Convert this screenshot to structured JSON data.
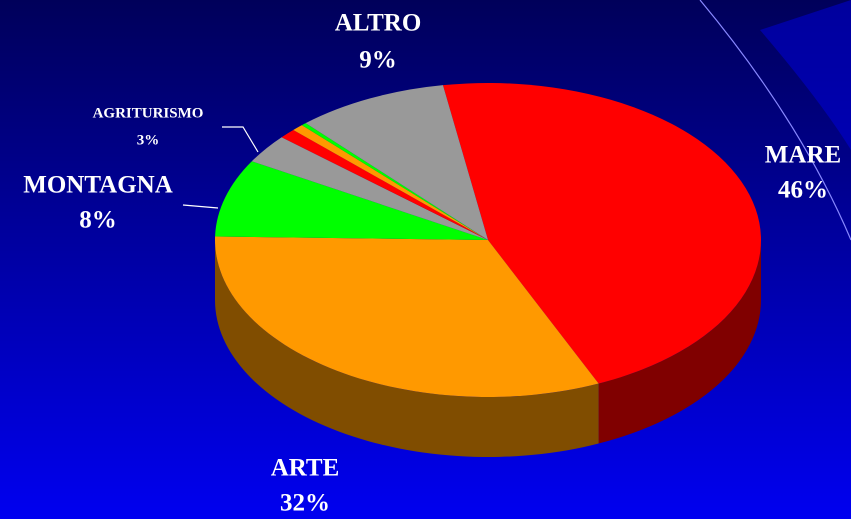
{
  "chart_data": {
    "type": "pie",
    "three_d": true,
    "categories": [
      "MARE",
      "ARTE",
      "MONTAGNA",
      "AGRITURISMO",
      null,
      null,
      null,
      "ALTRO"
    ],
    "values": [
      46,
      32,
      8,
      3,
      1,
      0.7,
      0.3,
      9
    ],
    "value_labels": [
      "46%",
      "32%",
      "8%",
      "3%",
      null,
      null,
      null,
      "9%"
    ],
    "colors": [
      "#ff0000",
      "#ff9900",
      "#00ff00",
      "#999999",
      "#ff0000",
      "#ff9900",
      "#00ff00",
      "#999999"
    ]
  }
}
